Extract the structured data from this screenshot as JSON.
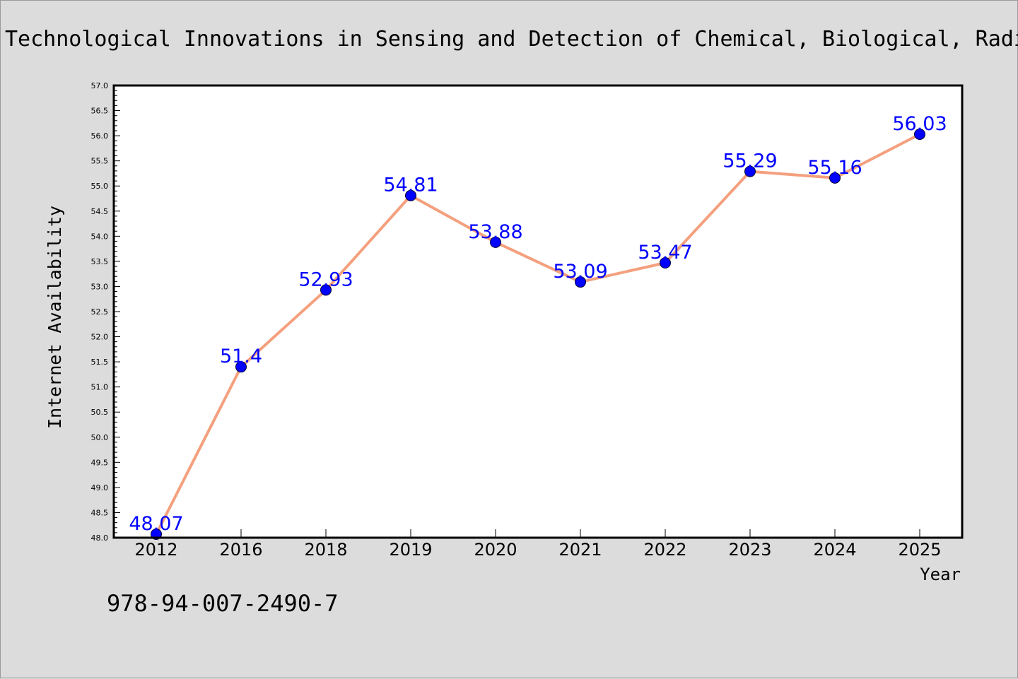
{
  "chart_data": {
    "type": "line",
    "title": "Technological Innovations in Sensing and Detection of Chemical, Biological, Radiological, Nuclear Threats and Ecological Terrorism",
    "xlabel": "Year",
    "ylabel": "Internet Availability",
    "categories": [
      "2012",
      "2016",
      "2018",
      "2019",
      "2020",
      "2021",
      "2022",
      "2023",
      "2024",
      "2025"
    ],
    "values": [
      48.07,
      51.4,
      52.93,
      54.81,
      53.88,
      53.09,
      53.47,
      55.29,
      55.16,
      56.03
    ],
    "data_labels": [
      "48.07",
      "51.4",
      "52.93",
      "54.81",
      "53.88",
      "53.09",
      "53.47",
      "55.29",
      "55.16",
      "56.03"
    ],
    "ylim": [
      48.0,
      57.0
    ],
    "y_major_ticks": [
      "48.0",
      "48.5",
      "49.0",
      "49.5",
      "50.0",
      "50.5",
      "51.0",
      "51.5",
      "52.0",
      "52.5",
      "53.0",
      "53.5",
      "54.0",
      "54.5",
      "55.0",
      "55.5",
      "56.0",
      "56.5",
      "57.0"
    ],
    "grid": false,
    "colors": {
      "line": "#f4a07e",
      "marker": "#0000ff",
      "label": "#0000ff",
      "frame": "#000000",
      "plot_bg": "#ffffff",
      "page_bg": "#dcdcdc"
    }
  },
  "footer": {
    "code": "978-94-007-2490-7"
  }
}
